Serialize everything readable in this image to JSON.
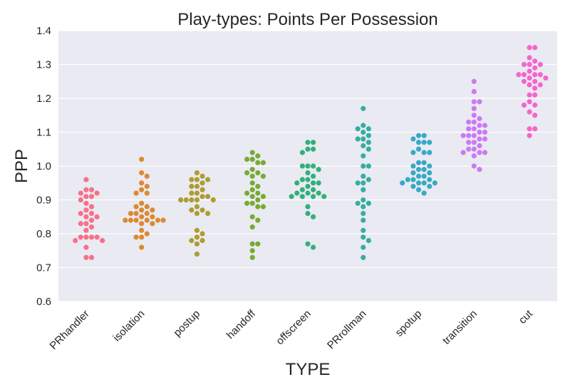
{
  "chart_data": {
    "type": "scatter",
    "subtype": "swarm",
    "title": "Play-types: Points Per Possession",
    "xlabel": "TYPE",
    "ylabel": "PPP",
    "ylim": [
      0.6,
      1.4
    ],
    "yticks": [
      "0.6",
      "0.7",
      "0.8",
      "0.9",
      "1.0",
      "1.1",
      "1.2",
      "1.3",
      "1.4"
    ],
    "grid": true,
    "categories": [
      "PRhandler",
      "isolation",
      "postup",
      "handoff",
      "offscreen",
      "PRrollman",
      "spotup",
      "transition",
      "cut"
    ],
    "colors": [
      "#f77189",
      "#dc8932",
      "#ae9d31",
      "#77ab31",
      "#33b07a",
      "#36ada4",
      "#38a9c5",
      "#6e9bf4",
      "#cc7af4",
      "#f565cc"
    ],
    "series": [
      {
        "name": "PRhandler",
        "color": "#f77189",
        "values": [
          0.96,
          0.93,
          0.93,
          0.92,
          0.92,
          0.91,
          0.91,
          0.9,
          0.89,
          0.88,
          0.87,
          0.86,
          0.86,
          0.85,
          0.85,
          0.84,
          0.83,
          0.83,
          0.82,
          0.81,
          0.79,
          0.79,
          0.79,
          0.79,
          0.78,
          0.78,
          0.76,
          0.73,
          0.73
        ]
      },
      {
        "name": "isolation",
        "color": "#dc8932",
        "values": [
          1.02,
          0.98,
          0.97,
          0.95,
          0.94,
          0.93,
          0.92,
          0.92,
          0.89,
          0.88,
          0.88,
          0.87,
          0.87,
          0.86,
          0.86,
          0.86,
          0.85,
          0.85,
          0.84,
          0.84,
          0.84,
          0.84,
          0.84,
          0.84,
          0.83,
          0.83,
          0.81,
          0.8,
          0.79,
          0.79,
          0.76
        ]
      },
      {
        "name": "postup",
        "color": "#ae9d31",
        "values": [
          0.98,
          0.97,
          0.96,
          0.96,
          0.96,
          0.95,
          0.94,
          0.94,
          0.93,
          0.92,
          0.92,
          0.91,
          0.91,
          0.9,
          0.9,
          0.9,
          0.9,
          0.9,
          0.88,
          0.87,
          0.87,
          0.86,
          0.86,
          0.81,
          0.8,
          0.79,
          0.78,
          0.78,
          0.77,
          0.74
        ]
      },
      {
        "name": "handoff",
        "color": "#77ab31",
        "values": [
          1.04,
          1.03,
          1.02,
          1.02,
          1.01,
          1.01,
          0.99,
          0.98,
          0.98,
          0.97,
          0.97,
          0.95,
          0.94,
          0.93,
          0.92,
          0.92,
          0.91,
          0.91,
          0.9,
          0.89,
          0.89,
          0.88,
          0.88,
          0.85,
          0.84,
          0.82,
          0.77,
          0.77,
          0.75,
          0.73
        ]
      },
      {
        "name": "offscreen",
        "color": "#33b07a",
        "values": [
          1.07,
          1.07,
          1.05,
          1.05,
          1.04,
          1.0,
          1.0,
          1.0,
          0.99,
          0.98,
          0.97,
          0.96,
          0.96,
          0.95,
          0.95,
          0.95,
          0.94,
          0.93,
          0.93,
          0.92,
          0.92,
          0.92,
          0.91,
          0.91,
          0.91,
          0.91,
          0.88,
          0.86,
          0.85,
          0.77,
          0.76
        ]
      },
      {
        "name": "PRrollman",
        "color": "#36ada4",
        "values": [
          1.17,
          1.12,
          1.11,
          1.11,
          1.1,
          1.09,
          1.08,
          1.08,
          1.07,
          1.06,
          1.05,
          1.03,
          1.0,
          1.0,
          0.97,
          0.96,
          0.95,
          0.95,
          0.93,
          0.9,
          0.89,
          0.89,
          0.88,
          0.86,
          0.84,
          0.81,
          0.79,
          0.78,
          0.76,
          0.73
        ]
      },
      {
        "name": "spotup",
        "color": "#38a9c5",
        "values": [
          1.09,
          1.09,
          1.08,
          1.07,
          1.07,
          1.07,
          1.05,
          1.04,
          1.04,
          1.04,
          1.01,
          1.01,
          1.0,
          1.0,
          0.99,
          0.99,
          0.98,
          0.98,
          0.97,
          0.97,
          0.96,
          0.96,
          0.96,
          0.95,
          0.95,
          0.95,
          0.95,
          0.94,
          0.94,
          0.93,
          0.92
        ]
      },
      {
        "name": "transition",
        "color": "#cc7af4",
        "values": [
          1.25,
          1.22,
          1.19,
          1.19,
          1.17,
          1.15,
          1.14,
          1.13,
          1.13,
          1.12,
          1.12,
          1.11,
          1.11,
          1.1,
          1.1,
          1.09,
          1.09,
          1.09,
          1.08,
          1.08,
          1.07,
          1.07,
          1.06,
          1.05,
          1.05,
          1.04,
          1.04,
          1.04,
          1.03,
          1.0,
          0.99
        ]
      },
      {
        "name": "cut",
        "color": "#f565cc",
        "values": [
          1.35,
          1.35,
          1.32,
          1.31,
          1.3,
          1.3,
          1.3,
          1.29,
          1.28,
          1.27,
          1.27,
          1.27,
          1.27,
          1.26,
          1.26,
          1.25,
          1.25,
          1.24,
          1.24,
          1.23,
          1.21,
          1.21,
          1.19,
          1.18,
          1.18,
          1.16,
          1.15,
          1.11,
          1.11,
          1.09
        ]
      }
    ]
  }
}
